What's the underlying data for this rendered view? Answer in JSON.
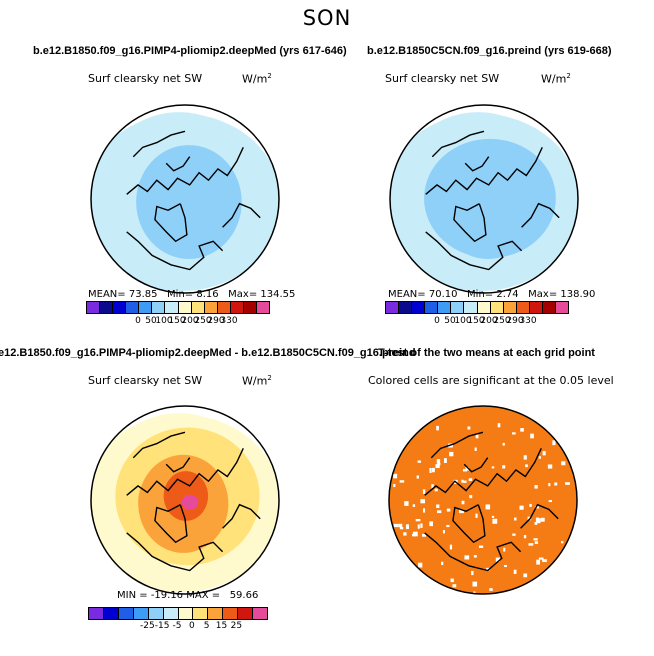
{
  "suptitle": "SON",
  "chart_data": [
    {
      "type": "heatmap",
      "projection": "polar-stereographic (Arctic)",
      "title": "b.e12.B1850.f09_g16.PIMP4-pliomip2.deepMed (yrs 617-646)",
      "variable": "Surf clearsky net SW",
      "units": "W/m",
      "units_sup": "2",
      "stats": {
        "mean_label": "MEAN=",
        "mean": "73.85",
        "min_label": "Min=",
        "min": "8.16",
        "max_label": "Max=",
        "max": "134.55"
      },
      "colorbar": {
        "levels": [
          "0",
          "50",
          "100",
          "150",
          "200",
          "250",
          "290",
          "330"
        ],
        "colors": [
          "#7a2be0",
          "#0a0a8c",
          "#0000d0",
          "#1f5fe8",
          "#3f9cf5",
          "#8fd0f8",
          "#c8ecf8",
          "#fffacd",
          "#ffe27a",
          "#f9a33a",
          "#ee5a17",
          "#d1150f",
          "#a40000",
          "#e64a9a"
        ]
      },
      "field": {
        "pole_value": 52,
        "mid_value": 90,
        "edge_value": 120
      }
    },
    {
      "type": "heatmap",
      "projection": "polar-stereographic (Arctic)",
      "title": "b.e12.B1850C5CN.f09_g16.preind (yrs 619-668)",
      "variable": "Surf clearsky net SW",
      "units": "W/m",
      "units_sup": "2",
      "stats": {
        "mean_label": "MEAN=",
        "mean": "70.10",
        "min_label": "Min=",
        "min": "2.74",
        "max_label": "Max=",
        "max": "138.90"
      },
      "colorbar": {
        "levels": [
          "0",
          "50",
          "100",
          "150",
          "200",
          "250",
          "290",
          "330"
        ],
        "colors": [
          "#7a2be0",
          "#0a0a8c",
          "#0000d0",
          "#1f5fe8",
          "#3f9cf5",
          "#8fd0f8",
          "#c8ecf8",
          "#fffacd",
          "#ffe27a",
          "#f9a33a",
          "#ee5a17",
          "#d1150f",
          "#a40000",
          "#e64a9a"
        ]
      },
      "field": {
        "pole_value": 45,
        "mid_value": 88,
        "edge_value": 122
      }
    },
    {
      "type": "heatmap",
      "projection": "polar-stereographic (Arctic)",
      "title": "e12.B1850.f09_g16.PIMP4-pliomip2.deepMed - b.e12.B1850C5CN.f09_g16.preind",
      "variable": "Surf clearsky net SW",
      "units": "W/m",
      "units_sup": "2",
      "stats": {
        "min_label": "MIN =",
        "min": "-19.16",
        "max_label": "MAX =",
        "max": "59.66"
      },
      "colorbar": {
        "levels": [
          "-25",
          "-15",
          "-5",
          "0",
          "5",
          "15",
          "25"
        ],
        "colors": [
          "#7a2be0",
          "#0000d0",
          "#1f5fe8",
          "#3f9cf5",
          "#8fd0f8",
          "#c8ecf8",
          "#fffacd",
          "#ffe27a",
          "#f9a33a",
          "#ee5a17",
          "#d1150f",
          "#e64a9a"
        ]
      },
      "field": {
        "pole_value": 30,
        "mid_value": 6,
        "edge_value": -3
      }
    },
    {
      "type": "heatmap",
      "projection": "polar-stereographic (Arctic)",
      "title": "T-test of the two means at each grid point",
      "variable": "Colored cells are significant at the 0.05 level",
      "significant_color": "#f57c14"
    }
  ]
}
